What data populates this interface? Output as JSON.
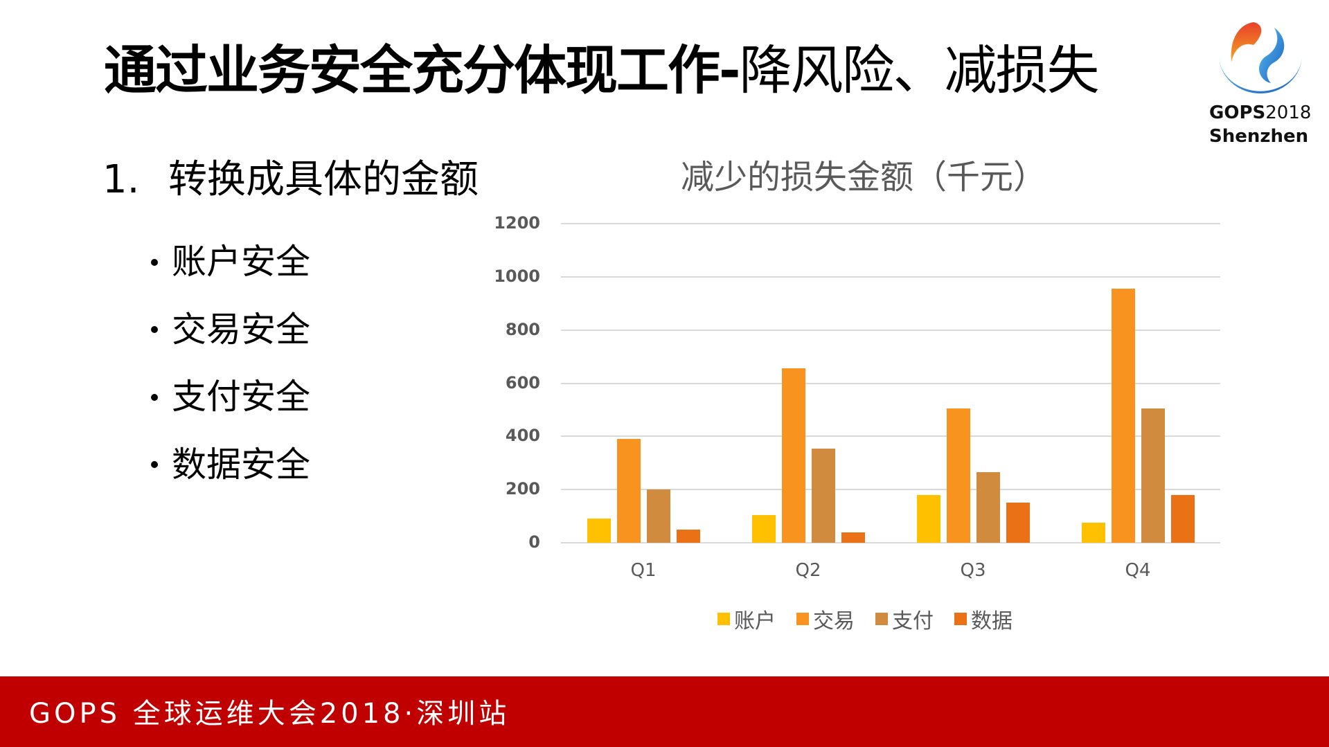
{
  "slide": {
    "title_bold": "通过业务安全充分体现工作-",
    "title_regular": "降风险、减损失",
    "heading_number": "1.",
    "heading_text": "转换成具体的金额",
    "bullets": [
      "账户安全",
      "交易安全",
      "支付安全",
      "数据安全"
    ]
  },
  "logo": {
    "brand": "GOPS",
    "year": "2018",
    "city": "Shenzhen"
  },
  "footer": {
    "text": "GOPS 全球运维大会2018·深圳站",
    "color": "#C00000"
  },
  "chart_data": {
    "type": "bar",
    "title": "减少的损失金额（千元）",
    "xlabel": "",
    "ylabel": "",
    "categories": [
      "Q1",
      "Q2",
      "Q3",
      "Q4"
    ],
    "series": [
      {
        "name": "账户",
        "color": "#FFC000",
        "values": [
          90,
          105,
          180,
          75
        ]
      },
      {
        "name": "交易",
        "color": "#F7931E",
        "values": [
          390,
          655,
          505,
          955
        ]
      },
      {
        "name": "支付",
        "color": "#D08B3E",
        "values": [
          200,
          355,
          265,
          505
        ]
      },
      {
        "name": "数据",
        "color": "#EB7117",
        "values": [
          50,
          40,
          150,
          180
        ]
      }
    ],
    "ylim": [
      0,
      1200
    ],
    "yticks": [
      "0",
      "200",
      "400",
      "600",
      "800",
      "1000",
      "1200"
    ],
    "grid": true,
    "legend_position": "bottom"
  }
}
